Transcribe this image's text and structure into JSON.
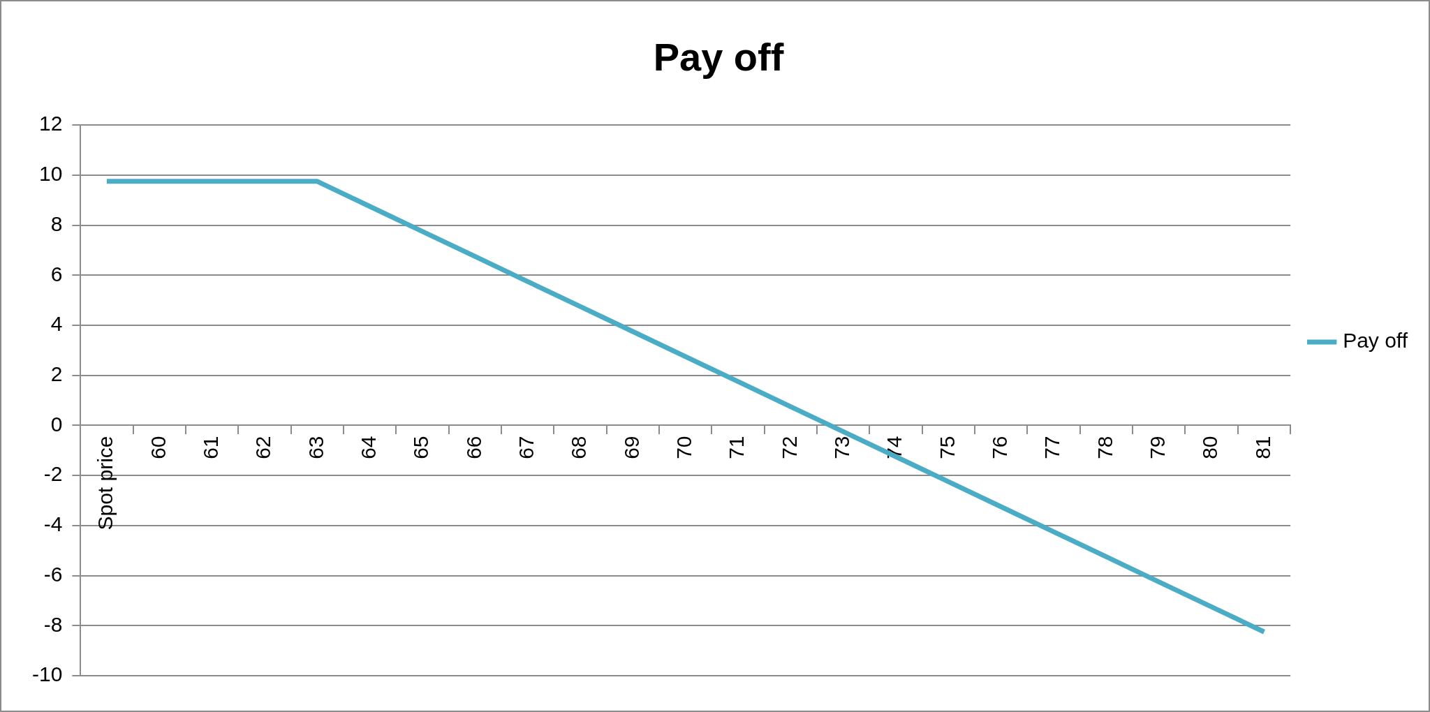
{
  "chart_data": {
    "type": "line",
    "title": "Pay off",
    "categories": [
      "Spot price",
      "60",
      "61",
      "62",
      "63",
      "64",
      "65",
      "66",
      "67",
      "68",
      "69",
      "70",
      "71",
      "72",
      "73",
      "74",
      "75",
      "76",
      "77",
      "78",
      "79",
      "80",
      "81"
    ],
    "series": [
      {
        "name": "Pay off",
        "color": "#4bacc6",
        "values": [
          9.75,
          9.75,
          9.75,
          9.75,
          9.75,
          8.75,
          7.75,
          6.75,
          5.75,
          4.75,
          3.75,
          2.75,
          1.75,
          0.75,
          -0.25,
          -1.25,
          -2.25,
          -3.25,
          -4.25,
          -5.25,
          -6.25,
          -7.25,
          -8.25
        ]
      }
    ],
    "ylim": [
      -10,
      12
    ],
    "yticks": [
      -10,
      -8,
      -6,
      -4,
      -2,
      0,
      2,
      4,
      6,
      8,
      10,
      12
    ],
    "grid": "y",
    "legend": "right",
    "marker": "none",
    "line_style": "solid"
  }
}
